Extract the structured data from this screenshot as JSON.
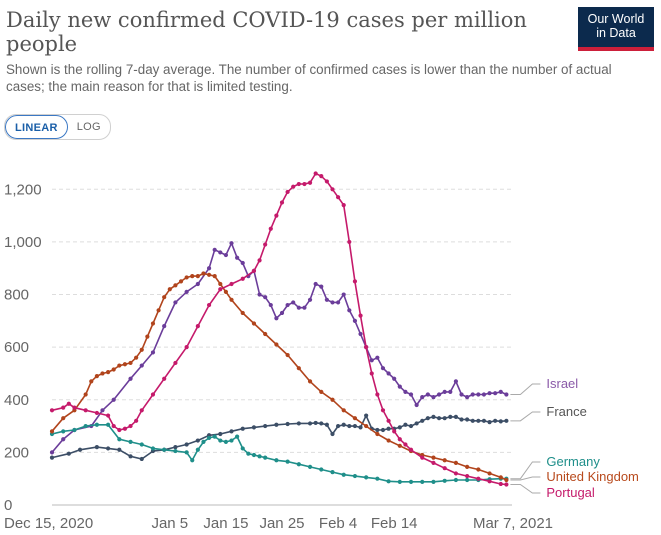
{
  "header": {
    "title": "Daily new confirmed COVID-19 cases per million people",
    "subtitle": "Shown is the rolling 7-day average. The number of confirmed cases is lower than the number of actual cases; the main reason for that is limited testing.",
    "logo_line1": "Our World",
    "logo_line2": "in Data"
  },
  "controls": {
    "linear": "LINEAR",
    "log": "LOG"
  },
  "chart_data": {
    "type": "line",
    "title": "Daily new confirmed COVID-19 cases per million people",
    "ylim": [
      0,
      1300
    ],
    "yticks": [
      0,
      200,
      400,
      600,
      800,
      1000,
      1200
    ],
    "ytick_labels": [
      "0",
      "200",
      "400",
      "600",
      "800",
      "1,000",
      "1,200"
    ],
    "x_range_days": [
      0,
      82
    ],
    "xticks": [
      {
        "day": 0,
        "label": "Dec 15, 2020"
      },
      {
        "day": 21,
        "label": "Jan 5"
      },
      {
        "day": 31,
        "label": "Jan 15"
      },
      {
        "day": 41,
        "label": "Jan 25"
      },
      {
        "day": 51,
        "label": "Feb 4"
      },
      {
        "day": 61,
        "label": "Feb 14"
      },
      {
        "day": 82,
        "label": "Mar 7, 2021"
      }
    ],
    "grid": true,
    "series": [
      {
        "name": "Israel",
        "color": "#6b3d9a",
        "label_color": "#8a5aa8",
        "points": [
          [
            0,
            200
          ],
          [
            2,
            250
          ],
          [
            4,
            285
          ],
          [
            7,
            300
          ],
          [
            9,
            360
          ],
          [
            11,
            400
          ],
          [
            14,
            480
          ],
          [
            16,
            530
          ],
          [
            18,
            580
          ],
          [
            20,
            680
          ],
          [
            22,
            770
          ],
          [
            24,
            810
          ],
          [
            26,
            840
          ],
          [
            28,
            900
          ],
          [
            29,
            970
          ],
          [
            30,
            960
          ],
          [
            31,
            950
          ],
          [
            32,
            995
          ],
          [
            33,
            940
          ],
          [
            34,
            920
          ],
          [
            35,
            870
          ],
          [
            36,
            890
          ],
          [
            37,
            800
          ],
          [
            38,
            790
          ],
          [
            39,
            760
          ],
          [
            40,
            710
          ],
          [
            41,
            730
          ],
          [
            42,
            760
          ],
          [
            43,
            770
          ],
          [
            44,
            750
          ],
          [
            45,
            750
          ],
          [
            46,
            780
          ],
          [
            47,
            840
          ],
          [
            48,
            830
          ],
          [
            49,
            780
          ],
          [
            50,
            770
          ],
          [
            51,
            770
          ],
          [
            52,
            800
          ],
          [
            53,
            740
          ],
          [
            54,
            700
          ],
          [
            55,
            650
          ],
          [
            56,
            600
          ],
          [
            57,
            550
          ],
          [
            58,
            560
          ],
          [
            59,
            520
          ],
          [
            60,
            500
          ],
          [
            61,
            480
          ],
          [
            62,
            450
          ],
          [
            63,
            430
          ],
          [
            64,
            420
          ],
          [
            65,
            380
          ],
          [
            66,
            410
          ],
          [
            67,
            420
          ],
          [
            68,
            410
          ],
          [
            69,
            420
          ],
          [
            70,
            430
          ],
          [
            71,
            430
          ],
          [
            72,
            470
          ],
          [
            73,
            420
          ],
          [
            74,
            410
          ],
          [
            75,
            420
          ],
          [
            76,
            420
          ],
          [
            77,
            420
          ],
          [
            78,
            425
          ],
          [
            79,
            425
          ],
          [
            80,
            430
          ],
          [
            81,
            420
          ]
        ]
      },
      {
        "name": "France",
        "color": "#3c4e66",
        "label_color": "#555",
        "points": [
          [
            0,
            180
          ],
          [
            3,
            195
          ],
          [
            5,
            210
          ],
          [
            8,
            220
          ],
          [
            10,
            215
          ],
          [
            12,
            210
          ],
          [
            14,
            185
          ],
          [
            16,
            175
          ],
          [
            18,
            205
          ],
          [
            20,
            210
          ],
          [
            22,
            220
          ],
          [
            24,
            230
          ],
          [
            26,
            245
          ],
          [
            28,
            265
          ],
          [
            30,
            270
          ],
          [
            32,
            280
          ],
          [
            34,
            290
          ],
          [
            36,
            295
          ],
          [
            38,
            300
          ],
          [
            40,
            305
          ],
          [
            42,
            308
          ],
          [
            44,
            310
          ],
          [
            46,
            310
          ],
          [
            47,
            312
          ],
          [
            48,
            310
          ],
          [
            49,
            305
          ],
          [
            50,
            270
          ],
          [
            51,
            300
          ],
          [
            52,
            305
          ],
          [
            53,
            300
          ],
          [
            54,
            300
          ],
          [
            55,
            295
          ],
          [
            56,
            340
          ],
          [
            57,
            290
          ],
          [
            58,
            285
          ],
          [
            59,
            285
          ],
          [
            60,
            290
          ],
          [
            61,
            290
          ],
          [
            62,
            295
          ],
          [
            63,
            305
          ],
          [
            64,
            300
          ],
          [
            65,
            310
          ],
          [
            66,
            320
          ],
          [
            67,
            330
          ],
          [
            68,
            335
          ],
          [
            69,
            330
          ],
          [
            70,
            330
          ],
          [
            71,
            335
          ],
          [
            72,
            335
          ],
          [
            73,
            325
          ],
          [
            74,
            325
          ],
          [
            75,
            320
          ],
          [
            76,
            320
          ],
          [
            77,
            320
          ],
          [
            78,
            315
          ],
          [
            79,
            320
          ],
          [
            80,
            318
          ],
          [
            81,
            320
          ]
        ]
      },
      {
        "name": "Germany",
        "color": "#1f8f8a",
        "label_color": "#1f8f8a",
        "points": [
          [
            0,
            270
          ],
          [
            2,
            280
          ],
          [
            4,
            285
          ],
          [
            6,
            300
          ],
          [
            8,
            305
          ],
          [
            10,
            305
          ],
          [
            12,
            250
          ],
          [
            14,
            240
          ],
          [
            16,
            230
          ],
          [
            18,
            215
          ],
          [
            20,
            210
          ],
          [
            22,
            205
          ],
          [
            24,
            200
          ],
          [
            25,
            170
          ],
          [
            26,
            210
          ],
          [
            27,
            240
          ],
          [
            28,
            255
          ],
          [
            29,
            260
          ],
          [
            30,
            245
          ],
          [
            31,
            240
          ],
          [
            32,
            245
          ],
          [
            33,
            260
          ],
          [
            34,
            215
          ],
          [
            35,
            195
          ],
          [
            36,
            190
          ],
          [
            37,
            185
          ],
          [
            38,
            180
          ],
          [
            40,
            170
          ],
          [
            42,
            165
          ],
          [
            44,
            155
          ],
          [
            46,
            145
          ],
          [
            48,
            135
          ],
          [
            50,
            125
          ],
          [
            52,
            115
          ],
          [
            54,
            110
          ],
          [
            56,
            105
          ],
          [
            58,
            100
          ],
          [
            60,
            90
          ],
          [
            62,
            88
          ],
          [
            64,
            88
          ],
          [
            66,
            88
          ],
          [
            68,
            88
          ],
          [
            70,
            92
          ],
          [
            72,
            95
          ],
          [
            74,
            95
          ],
          [
            76,
            95
          ],
          [
            78,
            98
          ],
          [
            80,
            100
          ],
          [
            81,
            100
          ]
        ]
      },
      {
        "name": "United Kingdom",
        "color": "#b1441c",
        "label_color": "#b84a1d",
        "points": [
          [
            0,
            280
          ],
          [
            2,
            330
          ],
          [
            4,
            360
          ],
          [
            6,
            420
          ],
          [
            7,
            470
          ],
          [
            8,
            490
          ],
          [
            9,
            500
          ],
          [
            10,
            505
          ],
          [
            11,
            515
          ],
          [
            12,
            530
          ],
          [
            13,
            535
          ],
          [
            14,
            540
          ],
          [
            15,
            560
          ],
          [
            16,
            590
          ],
          [
            17,
            640
          ],
          [
            18,
            690
          ],
          [
            19,
            740
          ],
          [
            20,
            790
          ],
          [
            21,
            820
          ],
          [
            22,
            835
          ],
          [
            23,
            850
          ],
          [
            24,
            865
          ],
          [
            25,
            870
          ],
          [
            26,
            870
          ],
          [
            27,
            880
          ],
          [
            28,
            875
          ],
          [
            29,
            870
          ],
          [
            30,
            840
          ],
          [
            31,
            810
          ],
          [
            32,
            780
          ],
          [
            34,
            730
          ],
          [
            36,
            690
          ],
          [
            38,
            650
          ],
          [
            40,
            610
          ],
          [
            42,
            570
          ],
          [
            44,
            520
          ],
          [
            46,
            470
          ],
          [
            48,
            430
          ],
          [
            50,
            400
          ],
          [
            52,
            360
          ],
          [
            54,
            330
          ],
          [
            56,
            300
          ],
          [
            58,
            270
          ],
          [
            60,
            245
          ],
          [
            62,
            225
          ],
          [
            64,
            205
          ],
          [
            66,
            190
          ],
          [
            68,
            180
          ],
          [
            70,
            170
          ],
          [
            72,
            160
          ],
          [
            74,
            145
          ],
          [
            76,
            135
          ],
          [
            78,
            120
          ],
          [
            80,
            105
          ],
          [
            81,
            95
          ]
        ]
      },
      {
        "name": "Portugal",
        "color": "#c51a6b",
        "label_color": "#c51a6b",
        "points": [
          [
            0,
            360
          ],
          [
            2,
            370
          ],
          [
            3,
            385
          ],
          [
            4,
            370
          ],
          [
            6,
            360
          ],
          [
            8,
            350
          ],
          [
            10,
            340
          ],
          [
            11,
            300
          ],
          [
            12,
            285
          ],
          [
            13,
            290
          ],
          [
            14,
            300
          ],
          [
            15,
            320
          ],
          [
            16,
            360
          ],
          [
            18,
            420
          ],
          [
            20,
            480
          ],
          [
            22,
            540
          ],
          [
            24,
            600
          ],
          [
            26,
            680
          ],
          [
            28,
            760
          ],
          [
            30,
            820
          ],
          [
            32,
            840
          ],
          [
            34,
            860
          ],
          [
            36,
            890
          ],
          [
            37,
            930
          ],
          [
            38,
            990
          ],
          [
            39,
            1050
          ],
          [
            40,
            1100
          ],
          [
            41,
            1150
          ],
          [
            42,
            1190
          ],
          [
            43,
            1210
          ],
          [
            44,
            1220
          ],
          [
            45,
            1220
          ],
          [
            46,
            1225
          ],
          [
            47,
            1260
          ],
          [
            48,
            1250
          ],
          [
            49,
            1230
          ],
          [
            50,
            1200
          ],
          [
            51,
            1170
          ],
          [
            52,
            1140
          ],
          [
            53,
            1000
          ],
          [
            54,
            850
          ],
          [
            55,
            720
          ],
          [
            56,
            600
          ],
          [
            57,
            500
          ],
          [
            58,
            420
          ],
          [
            59,
            360
          ],
          [
            60,
            320
          ],
          [
            61,
            280
          ],
          [
            62,
            250
          ],
          [
            63,
            230
          ],
          [
            64,
            210
          ],
          [
            66,
            180
          ],
          [
            68,
            160
          ],
          [
            70,
            140
          ],
          [
            72,
            120
          ],
          [
            74,
            110
          ],
          [
            76,
            100
          ],
          [
            78,
            90
          ],
          [
            80,
            80
          ],
          [
            81,
            78
          ]
        ]
      }
    ]
  }
}
